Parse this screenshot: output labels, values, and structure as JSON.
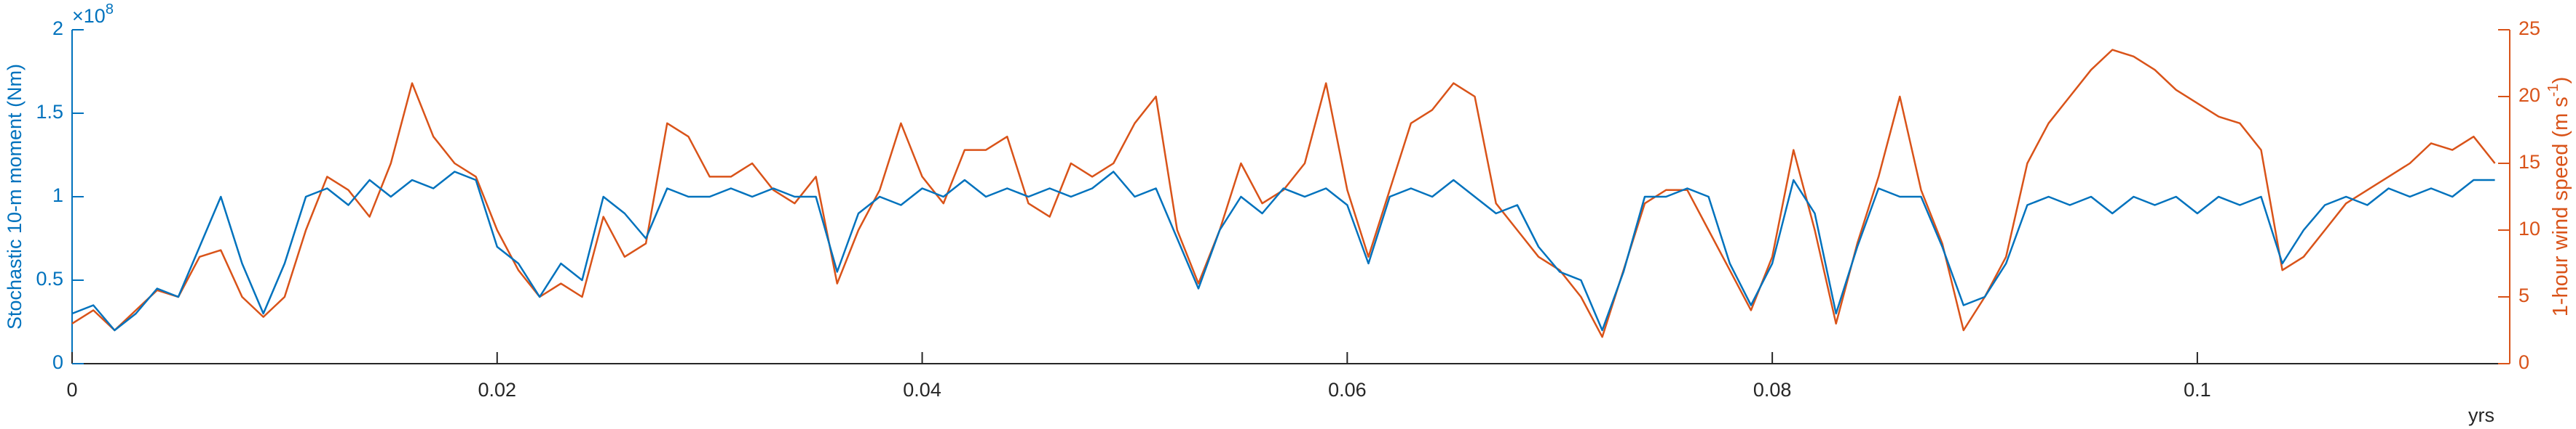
{
  "chart_data": {
    "type": "line",
    "x": [
      0,
      0.001,
      0.002,
      0.003,
      0.004,
      0.005,
      0.006,
      0.007,
      0.008,
      0.009,
      0.01,
      0.011,
      0.012,
      0.013,
      0.014,
      0.015,
      0.016,
      0.017,
      0.018,
      0.019,
      0.02,
      0.021,
      0.022,
      0.023,
      0.024,
      0.025,
      0.026,
      0.027,
      0.028,
      0.029,
      0.03,
      0.031,
      0.032,
      0.033,
      0.034,
      0.035,
      0.036,
      0.037,
      0.038,
      0.039,
      0.04,
      0.041,
      0.042,
      0.043,
      0.044,
      0.045,
      0.046,
      0.047,
      0.048,
      0.049,
      0.05,
      0.051,
      0.052,
      0.053,
      0.054,
      0.055,
      0.056,
      0.057,
      0.058,
      0.059,
      0.06,
      0.061,
      0.062,
      0.063,
      0.064,
      0.065,
      0.066,
      0.067,
      0.068,
      0.069,
      0.07,
      0.071,
      0.072,
      0.073,
      0.074,
      0.075,
      0.076,
      0.077,
      0.078,
      0.079,
      0.08,
      0.081,
      0.082,
      0.083,
      0.084,
      0.085,
      0.086,
      0.087,
      0.088,
      0.089,
      0.09,
      0.091,
      0.092,
      0.093,
      0.094,
      0.095,
      0.096,
      0.097,
      0.098,
      0.099,
      0.1,
      0.101,
      0.102,
      0.103,
      0.104,
      0.105,
      0.106,
      0.107,
      0.108,
      0.109,
      0.11,
      0.111,
      0.112,
      0.113,
      0.114
    ],
    "series": [
      {
        "name": "Stochastic 10-m moment",
        "color": "#0072BD",
        "values": [
          0.3,
          0.35,
          0.2,
          0.3,
          0.45,
          0.4,
          0.7,
          1.0,
          0.6,
          0.3,
          0.6,
          1.0,
          1.05,
          0.95,
          1.1,
          1.0,
          1.1,
          1.05,
          1.15,
          1.1,
          0.7,
          0.6,
          0.4,
          0.6,
          0.5,
          1.0,
          0.9,
          0.75,
          1.05,
          1.0,
          1.0,
          1.05,
          1.0,
          1.05,
          1.0,
          1.0,
          0.55,
          0.9,
          1.0,
          0.95,
          1.05,
          1.0,
          1.1,
          1.0,
          1.05,
          1.0,
          1.05,
          1.0,
          1.05,
          1.15,
          1.0,
          1.05,
          0.75,
          0.45,
          0.8,
          1.0,
          0.9,
          1.05,
          1.0,
          1.05,
          0.95,
          0.6,
          1.0,
          1.05,
          1.0,
          1.1,
          1.0,
          0.9,
          0.95,
          0.7,
          0.55,
          0.5,
          0.2,
          0.55,
          1.0,
          1.0,
          1.05,
          1.0,
          0.6,
          0.35,
          0.6,
          1.1,
          0.9,
          0.3,
          0.7,
          1.05,
          1.0,
          1.0,
          0.7,
          0.35,
          0.4,
          0.6,
          0.95,
          1.0,
          0.95,
          1.0,
          0.9,
          1.0,
          0.95,
          1.0,
          0.9,
          1.0,
          0.95,
          1.0,
          0.6,
          0.8,
          0.95,
          1.0,
          0.95,
          1.05,
          1.0,
          1.05,
          1.0,
          1.1,
          1.1
        ]
      },
      {
        "name": "1-hour wind speed",
        "color": "#D95319",
        "axis": "y2",
        "values": [
          3,
          4,
          2.5,
          4,
          5.5,
          5,
          8,
          8.5,
          5,
          3.5,
          5,
          10,
          14,
          13,
          11,
          15,
          21,
          17,
          15,
          14,
          10,
          7,
          5,
          6,
          5,
          11,
          8,
          9,
          18,
          17,
          14,
          14,
          15,
          13,
          12,
          14,
          6,
          10,
          13,
          18,
          14,
          12,
          16,
          16,
          17,
          12,
          11,
          15,
          14,
          15,
          18,
          20,
          10,
          6,
          10,
          15,
          12,
          13,
          15,
          21,
          13,
          8,
          13,
          18,
          19,
          21,
          20,
          12,
          10,
          8,
          7,
          5,
          2,
          7,
          12,
          13,
          13,
          10,
          7,
          4,
          8,
          16,
          10,
          3,
          9,
          14,
          20,
          13,
          9,
          2.5,
          5,
          8,
          15,
          18,
          20,
          22,
          23.5,
          23,
          22,
          20.5,
          19.5,
          18.5,
          18,
          16,
          7,
          8,
          10,
          12,
          13,
          14,
          15,
          16.5,
          16,
          17,
          15
        ]
      }
    ],
    "ylabel": "Stochastic 10-m moment (Nm)",
    "y_multiplier": {
      "base": "×10",
      "exponent": "8"
    },
    "y2label": {
      "text": "1-hour wind speed (m s",
      "superscript": "-1",
      "close": ")"
    },
    "xlabel": "yrs",
    "xlim": [
      0,
      0.1147
    ],
    "xticks": [
      0,
      0.02,
      0.04,
      0.06,
      0.08,
      0.1
    ],
    "ylim": [
      0,
      2
    ],
    "yticks": [
      0,
      0.5,
      1,
      1.5,
      2
    ],
    "y2lim": [
      0,
      25
    ],
    "y2ticks": [
      0,
      5,
      10,
      15,
      20,
      25
    ],
    "grid": false
  }
}
